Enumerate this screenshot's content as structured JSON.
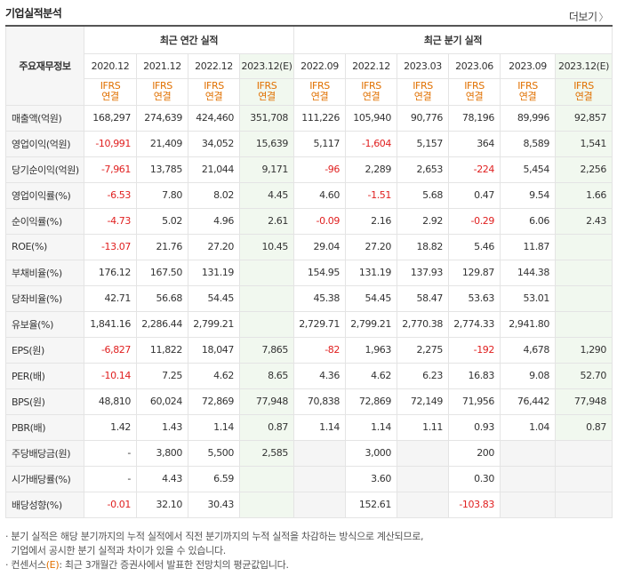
{
  "header": {
    "title": "기업실적분석",
    "more_label": "더보기",
    "more_arrow": "〉"
  },
  "table": {
    "row_header_label": "주요재무정보",
    "group_annual": "최근 연간 실적",
    "group_quarter": "최근 분기 실적",
    "annual_periods": [
      "2020.12",
      "2021.12",
      "2022.12",
      "2023.12(E)"
    ],
    "quarter_periods": [
      "2022.09",
      "2022.12",
      "2023.03",
      "2023.06",
      "2023.09",
      "2023.12(E)"
    ],
    "basis_line1": "IFRS",
    "basis_line2": "연결",
    "rows": [
      {
        "label": "매출액(억원)",
        "values": [
          "168,297",
          "274,639",
          "424,460",
          "351,708",
          "111,226",
          "105,940",
          "90,776",
          "78,196",
          "89,996",
          "92,857"
        ]
      },
      {
        "label": "영업이익(억원)",
        "values": [
          "-10,991",
          "21,409",
          "34,052",
          "15,639",
          "5,117",
          "-1,604",
          "5,157",
          "364",
          "8,589",
          "1,541"
        ]
      },
      {
        "label": "당기순이익(억원)",
        "values": [
          "-7,961",
          "13,785",
          "21,044",
          "9,171",
          "-96",
          "2,289",
          "2,653",
          "-224",
          "5,454",
          "2,256"
        ]
      },
      {
        "label": "영업이익률(%)",
        "values": [
          "-6.53",
          "7.80",
          "8.02",
          "4.45",
          "4.60",
          "-1.51",
          "5.68",
          "0.47",
          "9.54",
          "1.66"
        ]
      },
      {
        "label": "순이익률(%)",
        "values": [
          "-4.73",
          "5.02",
          "4.96",
          "2.61",
          "-0.09",
          "2.16",
          "2.92",
          "-0.29",
          "6.06",
          "2.43"
        ]
      },
      {
        "label": "ROE(%)",
        "values": [
          "-13.07",
          "21.76",
          "27.20",
          "10.45",
          "29.04",
          "27.20",
          "18.82",
          "5.46",
          "11.87",
          ""
        ]
      },
      {
        "label": "부채비율(%)",
        "values": [
          "176.12",
          "167.50",
          "131.19",
          "",
          "154.95",
          "131.19",
          "137.93",
          "129.87",
          "144.38",
          ""
        ]
      },
      {
        "label": "당좌비율(%)",
        "values": [
          "42.71",
          "56.68",
          "54.45",
          "",
          "45.38",
          "54.45",
          "58.47",
          "53.63",
          "53.01",
          ""
        ]
      },
      {
        "label": "유보율(%)",
        "values": [
          "1,841.16",
          "2,286.44",
          "2,799.21",
          "",
          "2,729.71",
          "2,799.21",
          "2,770.38",
          "2,774.33",
          "2,941.80",
          ""
        ]
      },
      {
        "label": "EPS(원)",
        "values": [
          "-6,827",
          "11,822",
          "18,047",
          "7,865",
          "-82",
          "1,963",
          "2,275",
          "-192",
          "4,678",
          "1,290"
        ]
      },
      {
        "label": "PER(배)",
        "values": [
          "-10.14",
          "7.25",
          "4.62",
          "8.65",
          "4.36",
          "4.62",
          "6.23",
          "16.83",
          "9.08",
          "52.70"
        ]
      },
      {
        "label": "BPS(원)",
        "values": [
          "48,810",
          "60,024",
          "72,869",
          "77,948",
          "70,838",
          "72,869",
          "72,149",
          "71,956",
          "76,442",
          "77,948"
        ]
      },
      {
        "label": "PBR(배)",
        "values": [
          "1.42",
          "1.43",
          "1.14",
          "0.87",
          "1.14",
          "1.14",
          "1.11",
          "0.93",
          "1.04",
          "0.87"
        ]
      },
      {
        "label": "주당배당금(원)",
        "values": [
          "-",
          "3,800",
          "5,500",
          "2,585",
          "",
          "3,000",
          "",
          "200",
          "",
          ""
        ]
      },
      {
        "label": "시가배당률(%)",
        "values": [
          "-",
          "4.43",
          "6.59",
          "",
          "",
          "3.60",
          "",
          "0.30",
          "",
          ""
        ]
      },
      {
        "label": "배당성향(%)",
        "values": [
          "-0.01",
          "32.10",
          "30.43",
          "",
          "",
          "152.61",
          "",
          "-103.83",
          "",
          ""
        ]
      }
    ]
  },
  "notes": {
    "line1": "· 분기 실적은 해당 분기까지의 누적 실적에서 직전 분기까지의 누적 실적을 차감하는 방식으로 계산되므로,",
    "line2": "  기업에서 공시한 분기 실적과 차이가 있을 수 있습니다.",
    "line3_prefix": "· 컨센서스",
    "line3_paren": "(E)",
    "line3_suffix": ": 최근 3개월간 증권사에서 발표한 전망치의 평균값입니다."
  },
  "colors": {
    "negative": "#e02020",
    "basis": "#e07000",
    "estimate_bg": "#f1f8ef",
    "label_bg": "#f6f6f6"
  }
}
